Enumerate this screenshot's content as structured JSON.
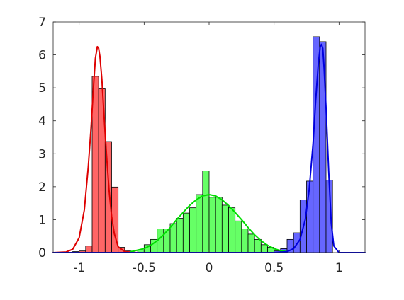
{
  "chart_data": {
    "type": "bar",
    "title": "",
    "xlabel": "",
    "ylabel": "",
    "xlim": [
      -1.2,
      1.2
    ],
    "ylim": [
      0,
      7
    ],
    "grid": false,
    "legend": "none",
    "bin_width": 0.05,
    "x_ticks": [
      {
        "value": -1,
        "label": "-1"
      },
      {
        "value": -0.5,
        "label": "-0.5"
      },
      {
        "value": 0,
        "label": "0"
      },
      {
        "value": 0.5,
        "label": "0.5"
      },
      {
        "value": 1,
        "label": "1"
      }
    ],
    "y_ticks": [
      {
        "value": 0,
        "label": "0"
      },
      {
        "value": 1,
        "label": "1"
      },
      {
        "value": 2,
        "label": "2"
      },
      {
        "value": 3,
        "label": "3"
      },
      {
        "value": 4,
        "label": "4"
      },
      {
        "value": 5,
        "label": "5"
      },
      {
        "value": 6,
        "label": "6"
      },
      {
        "value": 7,
        "label": "7"
      }
    ],
    "series": [
      {
        "kind": "histogram",
        "color": "#ff6666",
        "bins": [
          {
            "x0": -1.05,
            "x1": -1.0,
            "value": 0.03
          },
          {
            "x0": -1.0,
            "x1": -0.95,
            "value": 0.05
          },
          {
            "x0": -0.95,
            "x1": -0.9,
            "value": 0.2
          },
          {
            "x0": -0.9,
            "x1": -0.85,
            "value": 5.35
          },
          {
            "x0": -0.85,
            "x1": -0.8,
            "value": 4.97
          },
          {
            "x0": -0.8,
            "x1": -0.75,
            "value": 3.37
          },
          {
            "x0": -0.75,
            "x1": -0.7,
            "value": 1.99
          },
          {
            "x0": -0.7,
            "x1": -0.65,
            "value": 0.16
          },
          {
            "x0": -0.65,
            "x1": -0.6,
            "value": 0.05
          }
        ]
      },
      {
        "kind": "histogram",
        "color": "#66ff66",
        "bins": [
          {
            "x0": -0.55,
            "x1": -0.5,
            "value": 0.08
          },
          {
            "x0": -0.5,
            "x1": -0.45,
            "value": 0.24
          },
          {
            "x0": -0.45,
            "x1": -0.4,
            "value": 0.4
          },
          {
            "x0": -0.4,
            "x1": -0.35,
            "value": 0.72
          },
          {
            "x0": -0.35,
            "x1": -0.3,
            "value": 0.72
          },
          {
            "x0": -0.3,
            "x1": -0.25,
            "value": 0.88
          },
          {
            "x0": -0.25,
            "x1": -0.2,
            "value": 1.04
          },
          {
            "x0": -0.2,
            "x1": -0.15,
            "value": 1.2
          },
          {
            "x0": -0.15,
            "x1": -0.1,
            "value": 1.36
          },
          {
            "x0": -0.1,
            "x1": -0.05,
            "value": 1.76
          },
          {
            "x0": -0.05,
            "x1": 0.0,
            "value": 2.48
          },
          {
            "x0": 0.0,
            "x1": 0.05,
            "value": 1.68
          },
          {
            "x0": 0.05,
            "x1": 0.1,
            "value": 1.68
          },
          {
            "x0": 0.1,
            "x1": 0.15,
            "value": 1.44
          },
          {
            "x0": 0.15,
            "x1": 0.2,
            "value": 1.36
          },
          {
            "x0": 0.2,
            "x1": 0.25,
            "value": 0.96
          },
          {
            "x0": 0.25,
            "x1": 0.3,
            "value": 0.72
          },
          {
            "x0": 0.3,
            "x1": 0.35,
            "value": 0.56
          },
          {
            "x0": 0.35,
            "x1": 0.4,
            "value": 0.4
          },
          {
            "x0": 0.4,
            "x1": 0.45,
            "value": 0.24
          },
          {
            "x0": 0.45,
            "x1": 0.5,
            "value": 0.16
          },
          {
            "x0": 0.5,
            "x1": 0.55,
            "value": 0.08
          }
        ]
      },
      {
        "kind": "histogram",
        "color": "#6666ff",
        "bins": [
          {
            "x0": 0.5,
            "x1": 0.55,
            "value": 0.05
          },
          {
            "x0": 0.55,
            "x1": 0.6,
            "value": 0.12
          },
          {
            "x0": 0.6,
            "x1": 0.65,
            "value": 0.4
          },
          {
            "x0": 0.65,
            "x1": 0.7,
            "value": 0.6
          },
          {
            "x0": 0.7,
            "x1": 0.75,
            "value": 1.6
          },
          {
            "x0": 0.75,
            "x1": 0.8,
            "value": 2.17
          },
          {
            "x0": 0.8,
            "x1": 0.85,
            "value": 6.55
          },
          {
            "x0": 0.85,
            "x1": 0.9,
            "value": 6.4
          },
          {
            "x0": 0.9,
            "x1": 0.95,
            "value": 2.2
          }
        ]
      },
      {
        "kind": "line",
        "color": "#dd0000",
        "x": [
          -1.2,
          -1.1,
          -1.05,
          -1.0,
          -0.96,
          -0.93,
          -0.91,
          -0.89,
          -0.875,
          -0.86,
          -0.85,
          -0.84,
          -0.825,
          -0.81,
          -0.79,
          -0.77,
          -0.75,
          -0.73,
          -0.7,
          -0.65,
          -0.6,
          -0.55,
          -0.5
        ],
        "y": [
          0,
          0.02,
          0.1,
          0.45,
          1.3,
          2.6,
          3.7,
          5.0,
          5.9,
          6.25,
          6.2,
          5.95,
          5.25,
          4.25,
          3.0,
          1.9,
          1.1,
          0.58,
          0.18,
          0.03,
          0.01,
          0,
          0
        ]
      },
      {
        "kind": "line",
        "color": "#00dd00",
        "x": [
          -0.6,
          -0.5,
          -0.45,
          -0.4,
          -0.35,
          -0.3,
          -0.25,
          -0.2,
          -0.15,
          -0.1,
          -0.05,
          0.0,
          0.05,
          0.1,
          0.15,
          0.2,
          0.25,
          0.3,
          0.35,
          0.4,
          0.45,
          0.5,
          0.55,
          0.6
        ],
        "y": [
          0.03,
          0.12,
          0.22,
          0.36,
          0.54,
          0.76,
          1.0,
          1.22,
          1.43,
          1.6,
          1.72,
          1.76,
          1.72,
          1.6,
          1.43,
          1.22,
          1.0,
          0.76,
          0.54,
          0.36,
          0.22,
          0.12,
          0.06,
          0.03
        ]
      },
      {
        "kind": "line",
        "color": "#0000dd",
        "x": [
          -1.2,
          0.5,
          0.6,
          0.65,
          0.7,
          0.74,
          0.77,
          0.8,
          0.82,
          0.84,
          0.855,
          0.865,
          0.875,
          0.885,
          0.9,
          0.92,
          0.94,
          0.96,
          1.0,
          1.2
        ],
        "y": [
          0,
          0,
          0.03,
          0.12,
          0.4,
          1.0,
          1.9,
          3.3,
          4.6,
          5.7,
          6.25,
          6.32,
          6.2,
          5.6,
          4.4,
          2.5,
          0.9,
          0.2,
          0,
          0
        ]
      }
    ]
  }
}
